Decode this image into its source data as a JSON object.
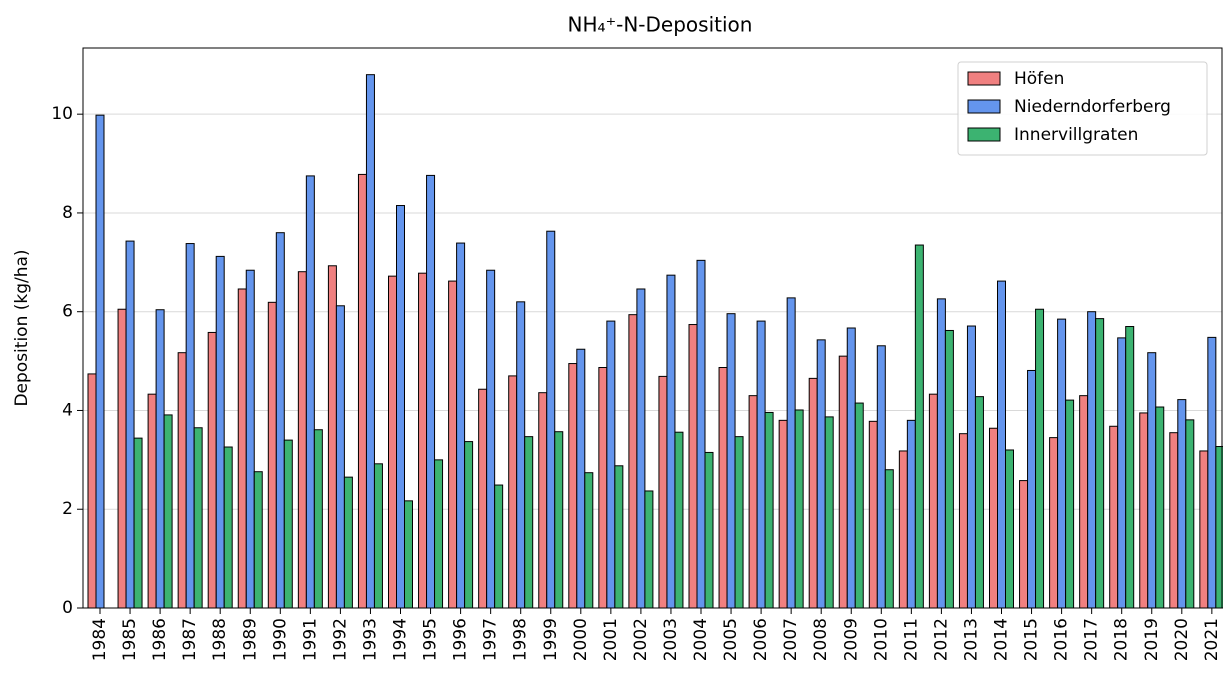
{
  "chart_data": {
    "type": "bar",
    "title": "NH₄⁺-N-Deposition",
    "y_label": "Deposition (kg/ha)",
    "categories": [
      "1984",
      "1985",
      "1986",
      "1987",
      "1988",
      "1989",
      "1990",
      "1991",
      "1992",
      "1993",
      "1994",
      "1995",
      "1996",
      "1997",
      "1998",
      "1999",
      "2000",
      "2001",
      "2002",
      "2003",
      "2004",
      "2005",
      "2006",
      "2007",
      "2008",
      "2009",
      "2010",
      "2011",
      "2012",
      "2013",
      "2014",
      "2015",
      "2016",
      "2017",
      "2018",
      "2019",
      "2020",
      "2021"
    ],
    "series": [
      {
        "name": "Höfen",
        "color": "#f08080",
        "values": [
          4.74,
          6.05,
          4.33,
          5.17,
          5.58,
          6.46,
          6.19,
          6.81,
          6.93,
          8.78,
          6.72,
          6.78,
          6.62,
          4.43,
          4.7,
          4.36,
          4.95,
          4.87,
          5.94,
          4.69,
          5.74,
          4.87,
          4.3,
          3.8,
          4.65,
          5.1,
          3.78,
          3.18,
          4.33,
          3.53,
          3.64,
          2.58,
          3.45,
          4.3,
          3.68,
          3.95,
          3.55,
          3.18
        ]
      },
      {
        "name": "Niederndorferberg",
        "color": "#6495ed",
        "values": [
          9.98,
          7.43,
          6.04,
          7.38,
          7.12,
          6.84,
          7.6,
          8.75,
          6.12,
          10.8,
          8.15,
          8.76,
          7.39,
          6.84,
          6.2,
          7.63,
          5.24,
          5.81,
          6.46,
          6.74,
          7.04,
          5.96,
          5.81,
          6.28,
          5.43,
          5.67,
          5.31,
          3.8,
          6.26,
          5.71,
          6.62,
          4.81,
          5.85,
          6.0,
          5.47,
          5.17,
          4.22,
          5.48
        ]
      },
      {
        "name": "Innervillgraten",
        "color": "#3cb371",
        "values": [
          null,
          3.44,
          3.91,
          3.65,
          3.26,
          2.76,
          3.4,
          3.61,
          2.65,
          2.92,
          2.17,
          3.0,
          3.37,
          2.49,
          3.47,
          3.57,
          2.74,
          2.88,
          2.37,
          3.56,
          3.15,
          3.47,
          3.96,
          4.01,
          3.87,
          4.15,
          2.8,
          7.35,
          5.62,
          4.28,
          3.2,
          6.05,
          4.21,
          5.86,
          5.7,
          4.07,
          3.81,
          3.27
        ]
      }
    ],
    "ylim": [
      0,
      11.34
    ],
    "yticks": [
      0,
      2,
      4,
      6,
      8,
      10
    ],
    "grid": true,
    "legend": "upper right"
  }
}
